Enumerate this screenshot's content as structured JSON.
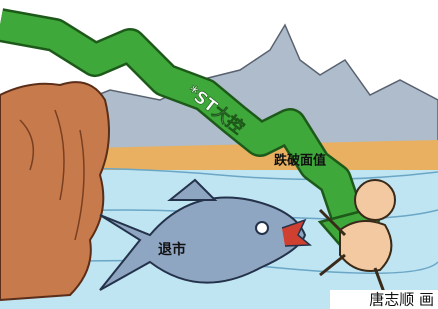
{
  "arrow_label": "*ST大控",
  "arrow_sublabel": "跌破面值",
  "fish_label": "退市",
  "credit": "唐志顺 画"
}
